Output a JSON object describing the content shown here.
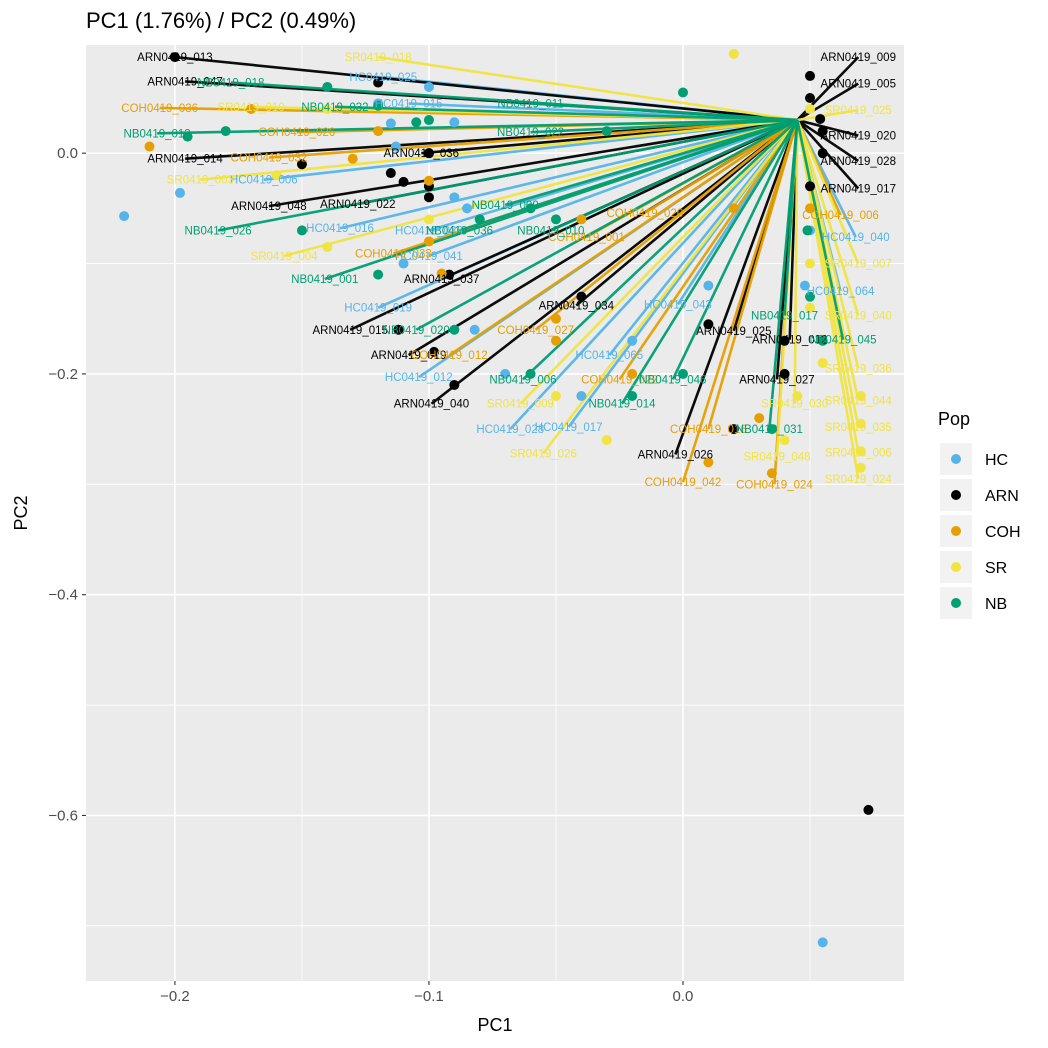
{
  "chart_data": {
    "type": "scatter",
    "title": "PC1 (1.76%) / PC2 (0.49%)",
    "xlabel": "PC1",
    "ylabel": "PC2",
    "xlim": [
      -0.235,
      0.087
    ],
    "ylim": [
      -0.75,
      0.098
    ],
    "x_ticks": [
      -0.2,
      -0.1,
      0.0
    ],
    "x_tick_labels": [
      "−0.2",
      "−0.1",
      "0.0"
    ],
    "y_ticks": [
      0.0,
      -0.2,
      -0.4,
      -0.6
    ],
    "y_tick_labels": [
      "0.0",
      "−0.2",
      "−0.4",
      "−0.6"
    ],
    "grid": true,
    "legend": {
      "title": "Pop",
      "position": "right"
    },
    "colors": {
      "HC": "#56B4E9",
      "ARN": "#000000",
      "COH": "#E69F00",
      "SR": "#F0E442",
      "NB": "#009E73"
    },
    "series": [
      {
        "name": "HC",
        "points": [
          {
            "label": "HC0419_006",
            "x": -0.113,
            "y": 0.006,
            "lx": -0.165,
            "ly": -0.024
          },
          {
            "label": "HC0419_016",
            "x": -0.1,
            "y": -0.03,
            "lx": -0.135,
            "ly": -0.068
          },
          {
            "label": "HC0419_036",
            "x": -0.09,
            "y": -0.04,
            "lx": -0.1,
            "ly": -0.07
          },
          {
            "label": "HC0419_041",
            "x": -0.085,
            "y": -0.05,
            "lx": -0.1,
            "ly": -0.093
          },
          {
            "label": "HC0419_019",
            "x": -0.11,
            "y": -0.1,
            "lx": -0.12,
            "ly": -0.14
          },
          {
            "label": "HC0419_012",
            "x": -0.082,
            "y": -0.16,
            "lx": -0.104,
            "ly": -0.203
          },
          {
            "label": "HC0419_028",
            "x": -0.07,
            "y": -0.2,
            "lx": -0.068,
            "ly": -0.25
          },
          {
            "label": "HC0419_017",
            "x": -0.04,
            "y": -0.22,
            "lx": -0.045,
            "ly": -0.248
          },
          {
            "label": "HC0419_065",
            "x": -0.02,
            "y": -0.17,
            "lx": -0.029,
            "ly": -0.183
          },
          {
            "label": "HC0419_043",
            "x": 0.01,
            "y": -0.12,
            "lx": -0.002,
            "ly": -0.137
          },
          {
            "label": "HC0419_040",
            "x": 0.05,
            "y": -0.07,
            "lx": 0.068,
            "ly": -0.076
          },
          {
            "label": "HC0419_064",
            "x": 0.048,
            "y": -0.12,
            "lx": 0.062,
            "ly": -0.125
          },
          {
            "label": "HC0419_025",
            "x": -0.1,
            "y": 0.06,
            "lx": -0.118,
            "ly": 0.069
          },
          {
            "label": "HC0419_015",
            "x": -0.12,
            "y": 0.045,
            "lx": -0.108,
            "ly": 0.045
          },
          {
            "label": "",
            "x": -0.22,
            "y": -0.057
          },
          {
            "label": "",
            "x": -0.198,
            "y": -0.036
          },
          {
            "label": "",
            "x": 0.055,
            "y": -0.715
          },
          {
            "label": "",
            "x": -0.09,
            "y": 0.028
          },
          {
            "label": "",
            "x": -0.115,
            "y": 0.027
          }
        ]
      },
      {
        "name": "ARN",
        "points": [
          {
            "label": "ARN0419_047",
            "x": -0.12,
            "y": 0.064,
            "lx": -0.196,
            "ly": 0.065
          },
          {
            "label": "ARN0419_014",
            "x": -0.15,
            "y": -0.01,
            "lx": -0.196,
            "ly": -0.005
          },
          {
            "label": "ARN0419_048",
            "x": -0.1,
            "y": -0.04,
            "lx": -0.163,
            "ly": -0.048
          },
          {
            "label": "ARN0419_022",
            "x": -0.1,
            "y": -0.03,
            "lx": -0.128,
            "ly": -0.046
          },
          {
            "label": "ARN0419_036",
            "x": -0.1,
            "y": 0.0,
            "lx": -0.103,
            "ly": 0.0
          },
          {
            "label": "ARN0419_037",
            "x": -0.092,
            "y": -0.11,
            "lx": -0.095,
            "ly": -0.114
          },
          {
            "label": "ARN0419_015",
            "x": -0.112,
            "y": -0.16,
            "lx": -0.131,
            "ly": -0.16
          },
          {
            "label": "ARN0419_019",
            "x": -0.098,
            "y": -0.18,
            "lx": -0.108,
            "ly": -0.183
          },
          {
            "label": "ARN0419_040",
            "x": -0.09,
            "y": -0.21,
            "lx": -0.099,
            "ly": -0.227
          },
          {
            "label": "ARN0419_034",
            "x": -0.04,
            "y": -0.13,
            "lx": -0.042,
            "ly": -0.138
          },
          {
            "label": "ARN0419_025",
            "x": 0.01,
            "y": -0.155,
            "lx": 0.02,
            "ly": -0.161
          },
          {
            "label": "ARN0419_012",
            "x": 0.04,
            "y": -0.17,
            "lx": 0.042,
            "ly": -0.169
          },
          {
            "label": "ARN0419_027",
            "x": 0.04,
            "y": -0.2,
            "lx": 0.037,
            "ly": -0.205
          },
          {
            "label": "ARN0419_026",
            "x": 0.02,
            "y": -0.25,
            "lx": -0.003,
            "ly": -0.273
          },
          {
            "label": "ARN0419_009",
            "x": 0.05,
            "y": 0.07,
            "lx": 0.069,
            "ly": 0.087
          },
          {
            "label": "ARN0419_005",
            "x": 0.05,
            "y": 0.05,
            "lx": 0.069,
            "ly": 0.063
          },
          {
            "label": "ARN0419_020",
            "x": 0.055,
            "y": 0.02,
            "lx": 0.069,
            "ly": 0.016
          },
          {
            "label": "ARN0419_028",
            "x": 0.055,
            "y": 0.0,
            "lx": 0.069,
            "ly": -0.007
          },
          {
            "label": "ARN0419_017",
            "x": 0.05,
            "y": -0.03,
            "lx": 0.069,
            "ly": -0.032
          },
          {
            "label": "ARN0419_013",
            "x": -0.2,
            "y": 0.087,
            "lx": -0.2,
            "ly": 0.087
          },
          {
            "label": "",
            "x": 0.073,
            "y": -0.595
          },
          {
            "label": "",
            "x": 0.054,
            "y": 0.031
          },
          {
            "label": "",
            "x": -0.11,
            "y": -0.026
          },
          {
            "label": "",
            "x": -0.115,
            "y": -0.018
          },
          {
            "label": "",
            "x": -0.1,
            "y": 0.0
          }
        ]
      },
      {
        "name": "COH",
        "points": [
          {
            "label": "COH0419_036",
            "x": -0.17,
            "y": 0.04,
            "lx": -0.206,
            "ly": 0.041
          },
          {
            "label": "COH0419_026",
            "x": -0.12,
            "y": 0.02,
            "lx": -0.152,
            "ly": 0.019
          },
          {
            "label": "COH0419_032",
            "x": -0.13,
            "y": -0.005,
            "lx": -0.163,
            "ly": -0.004
          },
          {
            "label": "COH0419_033",
            "x": -0.1,
            "y": -0.08,
            "lx": -0.114,
            "ly": -0.091
          },
          {
            "label": "COH0419_027",
            "x": -0.05,
            "y": -0.15,
            "lx": -0.058,
            "ly": -0.16
          },
          {
            "label": "COH0419_022",
            "x": -0.02,
            "y": -0.2,
            "lx": -0.025,
            "ly": -0.205
          },
          {
            "label": "COH0419_001",
            "x": -0.04,
            "y": -0.06,
            "lx": -0.038,
            "ly": -0.076
          },
          {
            "label": "COH0419_012",
            "x": -0.05,
            "y": -0.17,
            "lx": -0.092,
            "ly": -0.183
          },
          {
            "label": "COH0419_016",
            "x": 0.03,
            "y": -0.24,
            "lx": 0.01,
            "ly": -0.25
          },
          {
            "label": "COH0419_042",
            "x": 0.01,
            "y": -0.28,
            "lx": 0.0,
            "ly": -0.298
          },
          {
            "label": "COH0419_024",
            "x": 0.035,
            "y": -0.29,
            "lx": 0.036,
            "ly": -0.3
          },
          {
            "label": "COH0419_006",
            "x": 0.05,
            "y": -0.05,
            "lx": 0.062,
            "ly": -0.056
          },
          {
            "label": "COH0419_020",
            "x": 0.02,
            "y": -0.05,
            "lx": -0.015,
            "ly": -0.054
          },
          {
            "label": "",
            "x": -0.21,
            "y": 0.006
          },
          {
            "label": "",
            "x": -0.095,
            "y": -0.109
          },
          {
            "label": "",
            "x": -0.1,
            "y": -0.025
          }
        ]
      },
      {
        "name": "SR",
        "points": [
          {
            "label": "SR0419_003",
            "x": -0.16,
            "y": -0.02,
            "lx": -0.19,
            "ly": -0.024
          },
          {
            "label": "SR0419_004",
            "x": -0.14,
            "y": -0.085,
            "lx": -0.157,
            "ly": -0.093
          },
          {
            "label": "SR0419_025",
            "x": 0.05,
            "y": 0.04,
            "lx": 0.069,
            "ly": 0.039
          },
          {
            "label": "SR0419_007",
            "x": 0.05,
            "y": -0.1,
            "lx": 0.069,
            "ly": -0.1
          },
          {
            "label": "SR0419_040",
            "x": 0.05,
            "y": -0.14,
            "lx": 0.069,
            "ly": -0.147
          },
          {
            "label": "SR0419_036",
            "x": 0.055,
            "y": -0.19,
            "lx": 0.069,
            "ly": -0.195
          },
          {
            "label": "SR0419_044",
            "x": 0.07,
            "y": -0.22,
            "lx": 0.069,
            "ly": -0.224
          },
          {
            "label": "SR0419_035",
            "x": 0.07,
            "y": -0.245,
            "lx": 0.069,
            "ly": -0.248
          },
          {
            "label": "SR0419_006",
            "x": 0.07,
            "y": -0.27,
            "lx": 0.069,
            "ly": -0.271
          },
          {
            "label": "SR0419_024",
            "x": 0.07,
            "y": -0.285,
            "lx": 0.069,
            "ly": -0.295
          },
          {
            "label": "SR0419_026",
            "x": -0.03,
            "y": -0.26,
            "lx": -0.055,
            "ly": -0.272
          },
          {
            "label": "SR0419_009",
            "x": -0.05,
            "y": -0.22,
            "lx": -0.064,
            "ly": -0.227
          },
          {
            "label": "SR0419_048",
            "x": 0.04,
            "y": -0.26,
            "lx": 0.037,
            "ly": -0.275
          },
          {
            "label": "SR0419_030",
            "x": 0.045,
            "y": -0.22,
            "lx": 0.044,
            "ly": -0.227
          },
          {
            "label": "SR0419_018",
            "x": 0.02,
            "y": 0.09,
            "lx": -0.12,
            "ly": 0.087
          },
          {
            "label": "SR0419_010",
            "x": -0.14,
            "y": 0.04,
            "lx": -0.17,
            "ly": 0.042
          },
          {
            "label": "",
            "x": -0.1,
            "y": -0.06
          }
        ]
      },
      {
        "name": "NB",
        "points": [
          {
            "label": "NB0419_012",
            "x": -0.18,
            "y": 0.02,
            "lx": -0.207,
            "ly": 0.018
          },
          {
            "label": "NB0419_018",
            "x": -0.14,
            "y": 0.06,
            "lx": -0.178,
            "ly": 0.064
          },
          {
            "label": "NB0419_032",
            "x": -0.12,
            "y": 0.043,
            "lx": -0.137,
            "ly": 0.042
          },
          {
            "label": "NB0419_026",
            "x": -0.15,
            "y": -0.07,
            "lx": -0.183,
            "ly": -0.07
          },
          {
            "label": "NB0419_001",
            "x": -0.12,
            "y": -0.11,
            "lx": -0.141,
            "ly": -0.114
          },
          {
            "label": "NB0419_020",
            "x": -0.09,
            "y": -0.16,
            "lx": -0.105,
            "ly": -0.16
          },
          {
            "label": "NB0419_036",
            "x": -0.08,
            "y": -0.06,
            "lx": -0.088,
            "ly": -0.07
          },
          {
            "label": "NB0419_009",
            "x": -0.06,
            "y": -0.05,
            "lx": -0.07,
            "ly": -0.047
          },
          {
            "label": "NB0419_010",
            "x": -0.05,
            "y": -0.06,
            "lx": -0.052,
            "ly": -0.07
          },
          {
            "label": "NB0419_022",
            "x": -0.03,
            "y": 0.02,
            "lx": -0.06,
            "ly": 0.019
          },
          {
            "label": "NB0419_006",
            "x": -0.06,
            "y": -0.2,
            "lx": -0.063,
            "ly": -0.205
          },
          {
            "label": "NB0419_014",
            "x": -0.02,
            "y": -0.22,
            "lx": -0.024,
            "ly": -0.227
          },
          {
            "label": "NB0419_046",
            "x": 0.0,
            "y": -0.2,
            "lx": -0.004,
            "ly": -0.205
          },
          {
            "label": "NB0419_031",
            "x": 0.035,
            "y": -0.25,
            "lx": 0.034,
            "ly": -0.25
          },
          {
            "label": "NB0419_045",
            "x": 0.055,
            "y": -0.17,
            "lx": 0.063,
            "ly": -0.169
          },
          {
            "label": "NB0419_017",
            "x": 0.05,
            "y": -0.13,
            "lx": 0.04,
            "ly": -0.147
          },
          {
            "label": "NB0419_011",
            "x": 0.0,
            "y": 0.055,
            "lx": -0.06,
            "ly": 0.045
          },
          {
            "label": "",
            "x": -0.195,
            "y": 0.015
          },
          {
            "label": "",
            "x": 0.049,
            "y": -0.07
          },
          {
            "label": "",
            "x": -0.1,
            "y": 0.03
          },
          {
            "label": "",
            "x": -0.105,
            "y": 0.028
          }
        ]
      }
    ]
  }
}
